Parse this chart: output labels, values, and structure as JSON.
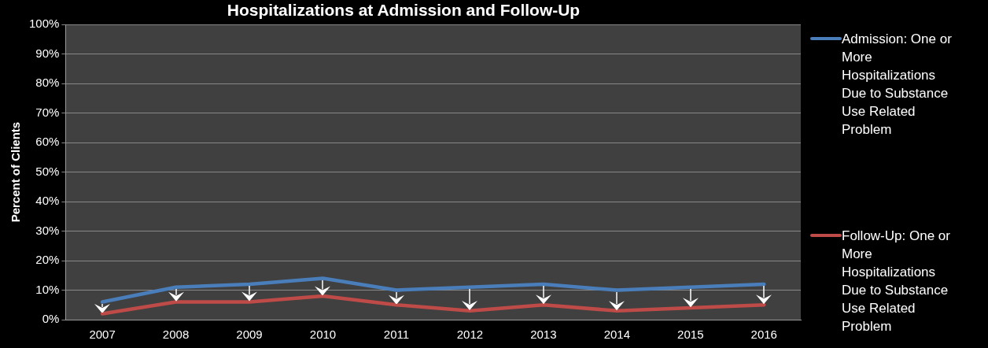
{
  "chart_data": {
    "type": "line",
    "title": "Hospitalizations at Admission and Follow-Up",
    "ylabel": "Percent of Clients",
    "categories": [
      "2007",
      "2008",
      "2009",
      "2010",
      "2011",
      "2012",
      "2013",
      "2014",
      "2015",
      "2016"
    ],
    "series": [
      {
        "name": "Admission: One or More Hospitalizations Due to Substance Use Related Problem",
        "color": "#4a7ebb",
        "values": [
          6,
          11,
          12,
          14,
          10,
          11,
          12,
          10,
          11,
          12
        ]
      },
      {
        "name": "Follow-Up: One or More Hospitalizations Due to Substance Use Related Problem",
        "color": "#be4b48",
        "values": [
          2,
          6,
          6,
          8,
          5,
          3,
          5,
          3,
          4,
          5
        ]
      }
    ],
    "ylim": [
      0,
      100
    ],
    "yticks": [
      {
        "value": 0,
        "label": "0%"
      },
      {
        "value": 10,
        "label": "10%"
      },
      {
        "value": 20,
        "label": "20%"
      },
      {
        "value": 30,
        "label": "30%"
      },
      {
        "value": 40,
        "label": "40%"
      },
      {
        "value": 50,
        "label": "50%"
      },
      {
        "value": 60,
        "label": "60%"
      },
      {
        "value": 70,
        "label": "70%"
      },
      {
        "value": 80,
        "label": "80%"
      },
      {
        "value": 90,
        "label": "90%"
      },
      {
        "value": 100,
        "label": "100%"
      }
    ],
    "grid": "y",
    "legend": "right",
    "marker": "none",
    "line_style": "solid"
  }
}
